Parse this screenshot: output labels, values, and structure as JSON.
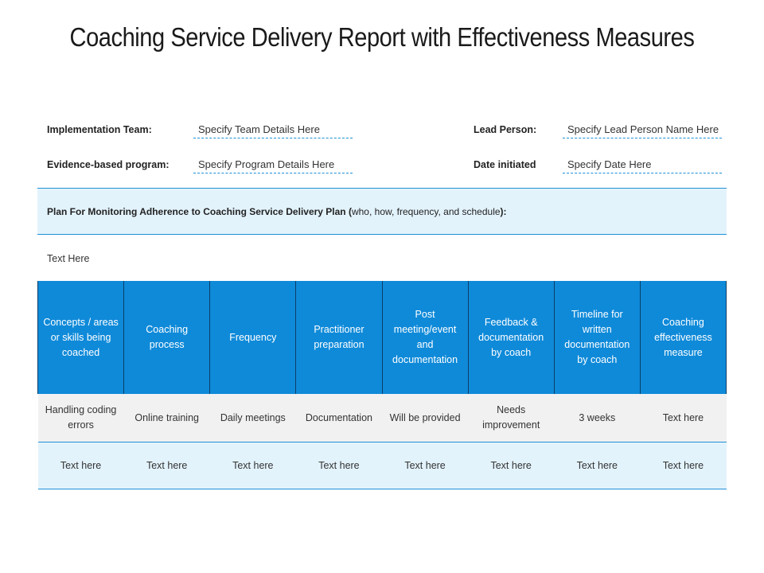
{
  "title": "Coaching Service Delivery Report with Effectiveness Measures",
  "fields": {
    "implementation_team_label": "Implementation Team:",
    "implementation_team_value": "Specify Team Details Here",
    "lead_person_label": "Lead Person:",
    "lead_person_value": "Specify Lead Person Name Here",
    "evidence_program_label": "Evidence-based program:",
    "evidence_program_value": "Specify Program Details Here",
    "date_initiated_label": "Date initiated",
    "date_initiated_value": "Specify Date Here"
  },
  "plan": {
    "bold_prefix": "Plan For Monitoring Adherence to Coaching Service Delivery Plan (",
    "detail": "who, how, frequency, and schedule",
    "bold_suffix": "):"
  },
  "plan_text": "Text Here",
  "table": {
    "headers": [
      "Concepts / areas or skills being coached",
      "Coaching process",
      "Frequency",
      "Practitioner preparation",
      "Post meeting/event and documentation",
      "Feedback & documentation by coach",
      "Timeline for written documentation by coach",
      "Coaching effectiveness measure"
    ],
    "rows": [
      [
        "Handling coding errors",
        "Online training",
        "Daily meetings",
        "Documentation",
        "Will be provided",
        "Needs improvement",
        "3 weeks",
        "Text here"
      ],
      [
        "Text here",
        "Text here",
        "Text here",
        "Text here",
        "Text here",
        "Text here",
        "Text here",
        "Text here"
      ]
    ]
  },
  "colors": {
    "header_blue": "#0f8ad9",
    "light_blue": "#e3f3fc",
    "gray_row": "#f1f1f1",
    "accent_line": "#1e90d6"
  }
}
